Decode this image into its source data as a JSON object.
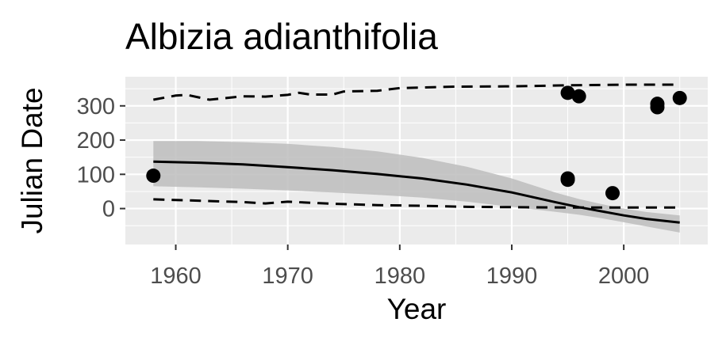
{
  "chart_data": {
    "type": "scatter",
    "title": "Albizia adianthifolia",
    "xlabel": "Year",
    "ylabel": "Julian Date",
    "xlim": [
      1955.5,
      2007.5
    ],
    "ylim": [
      -105,
      385
    ],
    "x_ticks": [
      1960,
      1970,
      1980,
      1990,
      2000
    ],
    "y_ticks": [
      0,
      100,
      200,
      300
    ],
    "grid": true,
    "legend": "none",
    "points": [
      {
        "x": 1958,
        "y": 96
      },
      {
        "x": 1995,
        "y": 338
      },
      {
        "x": 1996,
        "y": 328
      },
      {
        "x": 1995,
        "y": 88
      },
      {
        "x": 1995,
        "y": 84
      },
      {
        "x": 1999,
        "y": 45
      },
      {
        "x": 2003,
        "y": 306
      },
      {
        "x": 2003,
        "y": 296
      },
      {
        "x": 2005,
        "y": 323
      }
    ],
    "fit_line": [
      {
        "x": 1958,
        "y": 137
      },
      {
        "x": 1962,
        "y": 134
      },
      {
        "x": 1966,
        "y": 129
      },
      {
        "x": 1970,
        "y": 121
      },
      {
        "x": 1974,
        "y": 112
      },
      {
        "x": 1978,
        "y": 101
      },
      {
        "x": 1982,
        "y": 88
      },
      {
        "x": 1986,
        "y": 70
      },
      {
        "x": 1990,
        "y": 47
      },
      {
        "x": 1994,
        "y": 18
      },
      {
        "x": 1996,
        "y": 4
      },
      {
        "x": 1998,
        "y": -8
      },
      {
        "x": 2000,
        "y": -20
      },
      {
        "x": 2002,
        "y": -30
      },
      {
        "x": 2005,
        "y": -41
      }
    ],
    "ribbon": [
      {
        "x": 1958,
        "lower": 65,
        "upper": 197
      },
      {
        "x": 1962,
        "lower": 62,
        "upper": 197
      },
      {
        "x": 1966,
        "lower": 58,
        "upper": 194
      },
      {
        "x": 1970,
        "lower": 53,
        "upper": 189
      },
      {
        "x": 1974,
        "lower": 47,
        "upper": 180
      },
      {
        "x": 1978,
        "lower": 40,
        "upper": 167
      },
      {
        "x": 1982,
        "lower": 32,
        "upper": 148
      },
      {
        "x": 1986,
        "lower": 20,
        "upper": 122
      },
      {
        "x": 1990,
        "lower": 5,
        "upper": 88
      },
      {
        "x": 1994,
        "lower": -10,
        "upper": 46
      },
      {
        "x": 1996,
        "lower": -18,
        "upper": 28
      },
      {
        "x": 1998,
        "lower": -28,
        "upper": 13
      },
      {
        "x": 2000,
        "lower": -40,
        "upper": 0
      },
      {
        "x": 2002,
        "lower": -52,
        "upper": -10
      },
      {
        "x": 2005,
        "lower": -70,
        "upper": -20
      }
    ],
    "upper_dashed": [
      {
        "x": 1958,
        "y": 318
      },
      {
        "x": 1960,
        "y": 330
      },
      {
        "x": 1961,
        "y": 332
      },
      {
        "x": 1963,
        "y": 318
      },
      {
        "x": 1966,
        "y": 328
      },
      {
        "x": 1968,
        "y": 327
      },
      {
        "x": 1970,
        "y": 332
      },
      {
        "x": 1971,
        "y": 338
      },
      {
        "x": 1972,
        "y": 333
      },
      {
        "x": 1974,
        "y": 333
      },
      {
        "x": 1975,
        "y": 342
      },
      {
        "x": 1978,
        "y": 344
      },
      {
        "x": 1980,
        "y": 352
      },
      {
        "x": 1985,
        "y": 356
      },
      {
        "x": 1990,
        "y": 357
      },
      {
        "x": 1995,
        "y": 360
      },
      {
        "x": 2000,
        "y": 362
      },
      {
        "x": 2005,
        "y": 362
      }
    ],
    "lower_dashed": [
      {
        "x": 1958,
        "y": 27
      },
      {
        "x": 1962,
        "y": 23
      },
      {
        "x": 1966,
        "y": 19
      },
      {
        "x": 1968,
        "y": 15
      },
      {
        "x": 1970,
        "y": 20
      },
      {
        "x": 1974,
        "y": 14
      },
      {
        "x": 1978,
        "y": 10
      },
      {
        "x": 1982,
        "y": 8
      },
      {
        "x": 1986,
        "y": 5
      },
      {
        "x": 1990,
        "y": 4
      },
      {
        "x": 1995,
        "y": 3
      },
      {
        "x": 2000,
        "y": 3
      },
      {
        "x": 2005,
        "y": 3
      }
    ],
    "colors": {
      "panel": "#ebebeb",
      "grid_major": "#ffffff",
      "ribbon": "#bdbdbd",
      "line": "#000000",
      "points": "#000000",
      "ticks": "#333333"
    }
  }
}
